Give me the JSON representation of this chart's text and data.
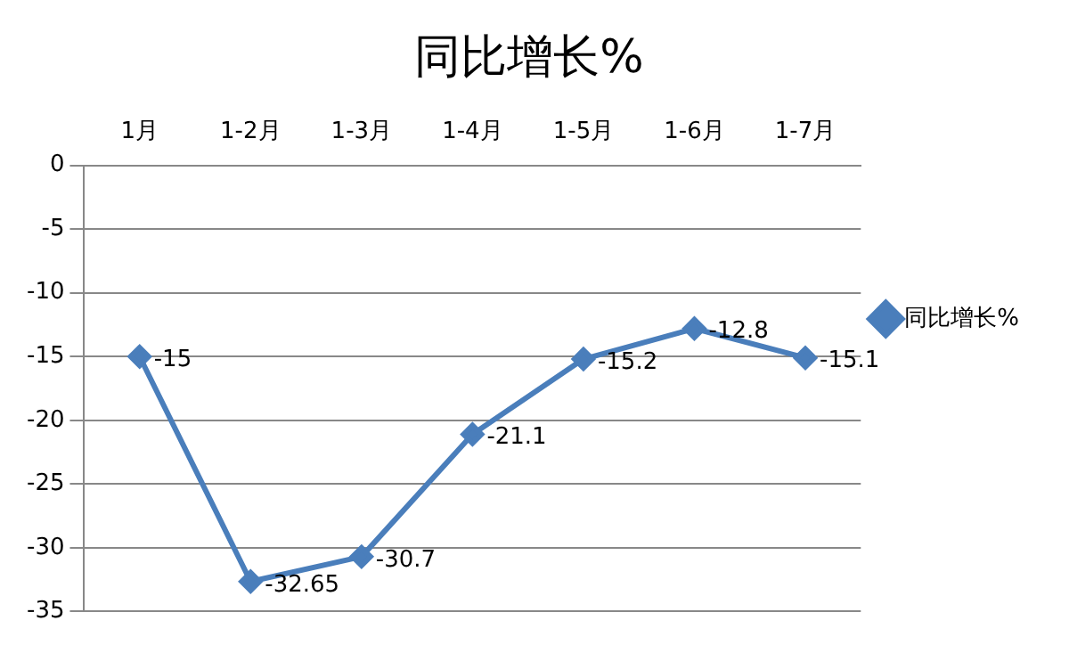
{
  "chart_data": {
    "type": "line",
    "title": "同比增长%",
    "categories": [
      "1月",
      "1-2月",
      "1-3月",
      "1-4月",
      "1-5月",
      "1-6月",
      "1-7月"
    ],
    "series": [
      {
        "name": "同比增长%",
        "color": "#4a7ebb",
        "values": [
          -15,
          -32.65,
          -30.7,
          -21.1,
          -15.2,
          -12.8,
          -15.1
        ]
      }
    ],
    "ylim": [
      -35,
      0
    ],
    "yticks": [
      -35,
      -30,
      -25,
      -20,
      -15,
      -10,
      -5,
      0
    ],
    "grid": "y",
    "legend": "right",
    "marker": "diamond",
    "line_style": "solid",
    "data_labels": true
  }
}
